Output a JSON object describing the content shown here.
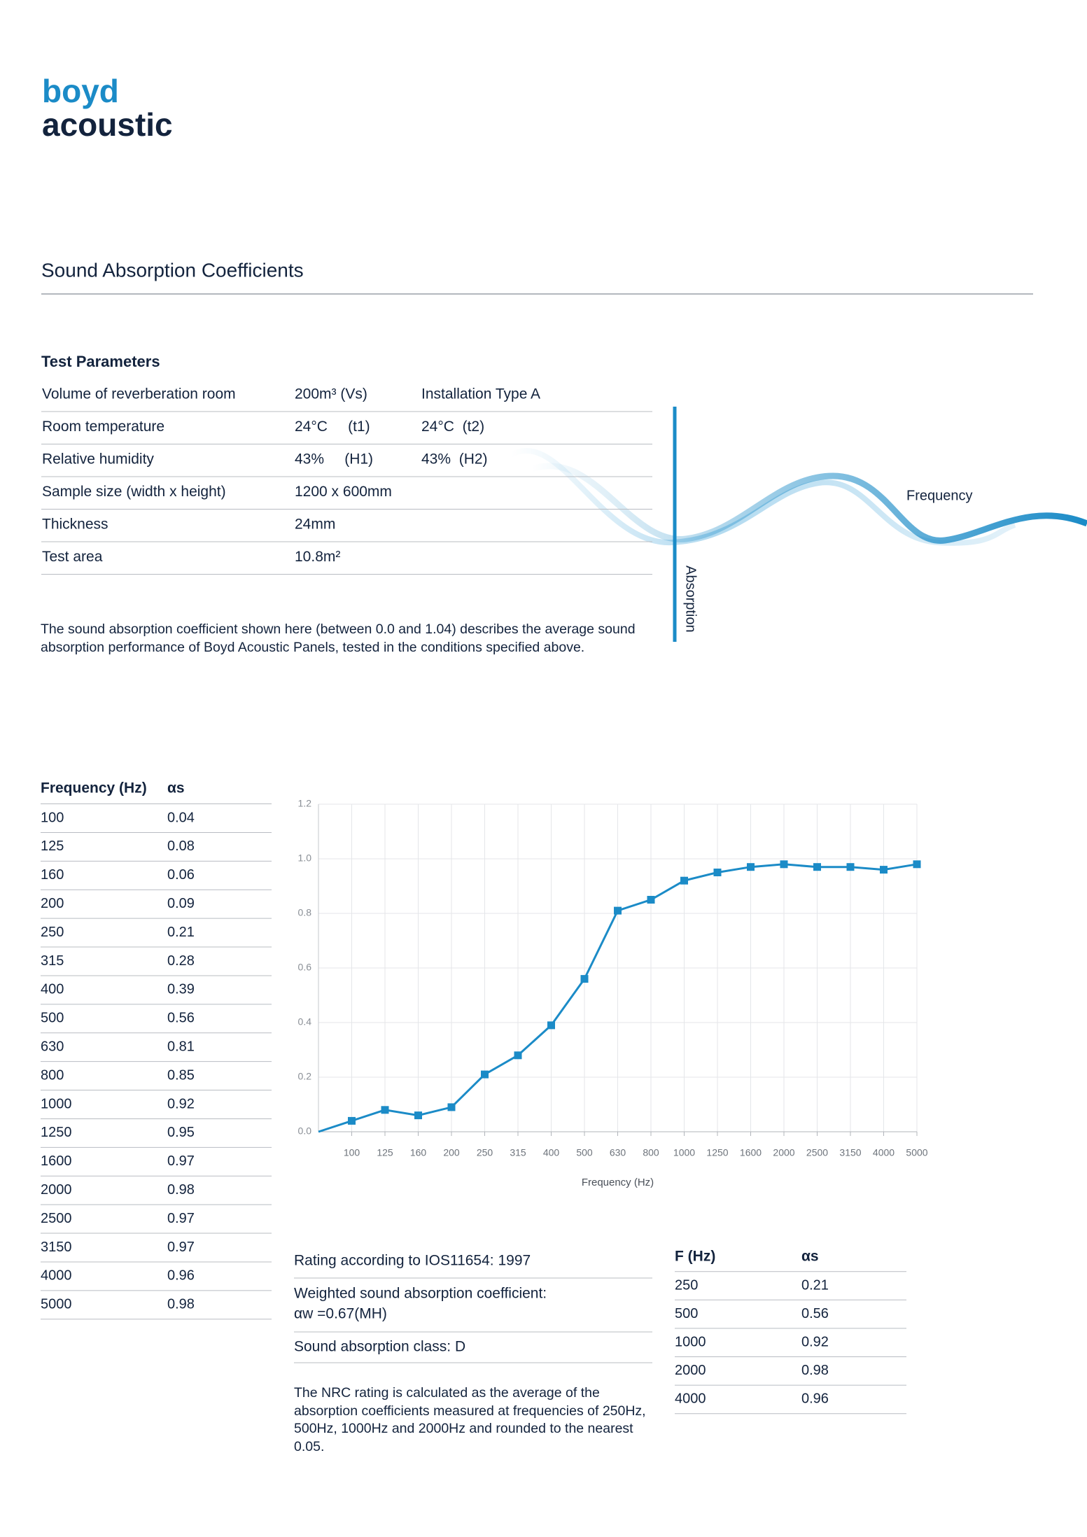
{
  "logo": {
    "line1": "boyd",
    "line2": "acoustic"
  },
  "title": "Sound Absorption Coefficients",
  "test_parameters": {
    "heading": "Test Parameters",
    "rows": [
      [
        "Volume of reverberation room",
        "200m³ (Vs)",
        "Installation Type A"
      ],
      [
        "Room temperature",
        "24°C     (t1)",
        "24°C  (t2)"
      ],
      [
        "Relative humidity",
        "43%     (H1)",
        "43%  (H2)"
      ],
      [
        "Sample size (width x height)",
        "1200 x 600mm"
      ],
      [
        "Thickness",
        "24mm"
      ],
      [
        "Test area",
        "10.8m²"
      ]
    ]
  },
  "diagram": {
    "x_label": "Frequency",
    "y_label": "Absorption"
  },
  "note": "The sound absorption coefficient shown here (between 0.0 and 1.04) describes the average sound absorption performance of Boyd Acoustic Panels, tested in the conditions specified above.",
  "frequency_table": {
    "headers": [
      "Frequency (Hz)",
      "αs"
    ],
    "rows": [
      [
        "100",
        "0.04"
      ],
      [
        "125",
        "0.08"
      ],
      [
        "160",
        "0.06"
      ],
      [
        "200",
        "0.09"
      ],
      [
        "250",
        "0.21"
      ],
      [
        "315",
        "0.28"
      ],
      [
        "400",
        "0.39"
      ],
      [
        "500",
        "0.56"
      ],
      [
        "630",
        "0.81"
      ],
      [
        "800",
        "0.85"
      ],
      [
        "1000",
        "0.92"
      ],
      [
        "1250",
        "0.95"
      ],
      [
        "1600",
        "0.97"
      ],
      [
        "2000",
        "0.98"
      ],
      [
        "2500",
        "0.97"
      ],
      [
        "3150",
        "0.97"
      ],
      [
        "4000",
        "0.96"
      ],
      [
        "5000",
        "0.98"
      ]
    ]
  },
  "chart_data": {
    "type": "line",
    "x_label": "Frequency (Hz)",
    "categories": [
      null,
      "100",
      "125",
      "160",
      "200",
      "250",
      "315",
      "400",
      "500",
      "630",
      "800",
      "1000",
      "1250",
      "1600",
      "2000",
      "2500",
      "3150",
      "4000",
      "5000"
    ],
    "values": [
      0,
      0.04,
      0.08,
      0.06,
      0.09,
      0.21,
      0.28,
      0.39,
      0.56,
      0.81,
      0.85,
      0.92,
      0.95,
      0.97,
      0.98,
      0.97,
      0.97,
      0.96,
      0.98
    ],
    "color": "#1b8bc7",
    "ylim": [
      0,
      1.2
    ],
    "yticks": [
      {
        "value": 0,
        "label": "0.0"
      },
      0.2,
      0.4,
      0.6,
      0.8,
      {
        "value": 1,
        "label": "1.0"
      },
      1.2
    ],
    "grid": true
  },
  "rating": {
    "standard": "Rating according to IOS11654: 1997",
    "weighted_label": "Weighted sound absorption coefficient:",
    "weighted_value": "αw =0.67(MH)",
    "class": "Sound absorption class: D",
    "note": "The NRC rating is calculated as the average of the absorption coefficients measured at frequencies of 250Hz, 500Hz, 1000Hz and 2000Hz and rounded to the nearest 0.05."
  },
  "nrc_table": {
    "headers": [
      "F (Hz)",
      "αs"
    ],
    "rows": [
      [
        "250",
        "0.21"
      ],
      [
        "500",
        "0.56"
      ],
      [
        "1000",
        "0.92"
      ],
      [
        "2000",
        "0.98"
      ],
      [
        "4000",
        "0.96"
      ]
    ]
  }
}
